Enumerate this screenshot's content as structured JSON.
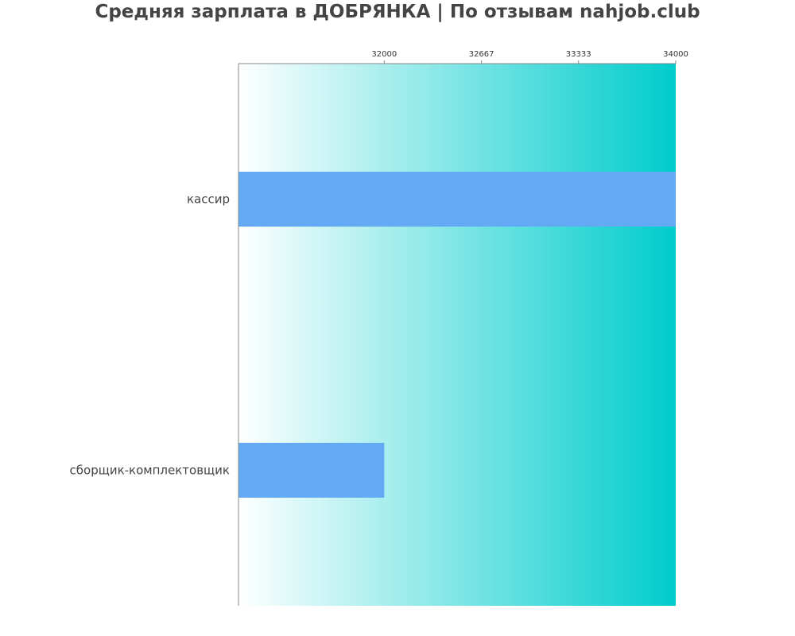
{
  "chart_data": {
    "type": "bar",
    "orientation": "horizontal",
    "title": "Средняя зарплата в ДОБРЯНКА | По отзывам nahjob.club",
    "categories": [
      "кассир",
      "сборщик-комплектовщик"
    ],
    "values": [
      34000,
      32000
    ],
    "xlim": [
      31000,
      34000
    ],
    "x_ticks": [
      32000,
      32667,
      33333,
      34000
    ],
    "x_tick_labels": [
      "32000",
      "32667",
      "33333",
      "34000"
    ],
    "x_axis_position": "top",
    "grid": false,
    "legend": "none",
    "xlabel": "",
    "ylabel": ""
  },
  "colors": {
    "bar": "#63a9f4",
    "plot_gradient_start": "#ffffff",
    "plot_gradient_end": "#00cccc",
    "title": "#444444",
    "axis": "#888888"
  }
}
